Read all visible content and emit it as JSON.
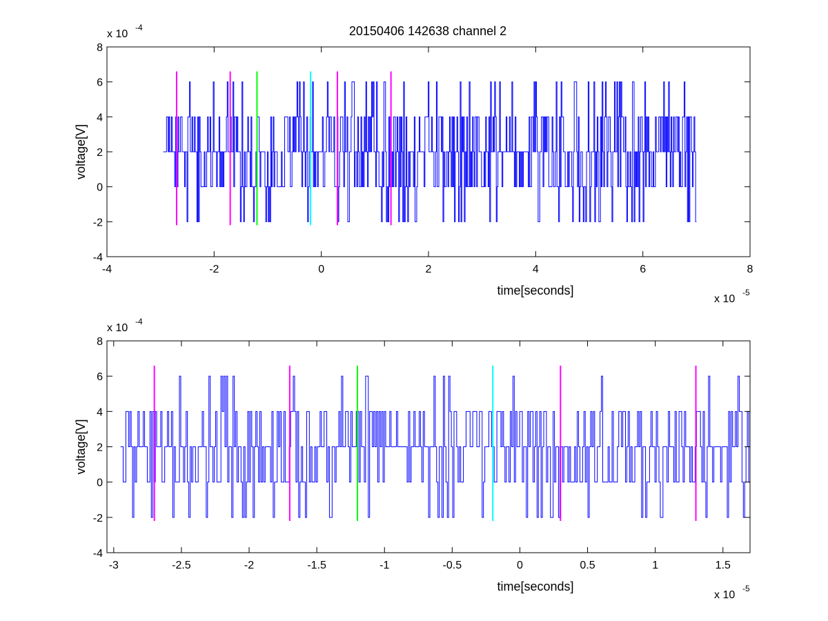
{
  "figure": {
    "title": "20150406 142638 channel 2"
  },
  "colors": {
    "signal": "#0000ff",
    "magenta": "#ff00ff",
    "green": "#00ff00",
    "cyan": "#00ffff",
    "axes": "#000000"
  },
  "chart_data": [
    {
      "type": "line",
      "xlabel": "time[seconds]",
      "ylabel": "voltage[V]",
      "x_multiplier": {
        "base": "x 10",
        "exponent": "-5"
      },
      "y_multiplier": {
        "base": "x 10",
        "exponent": "-4"
      },
      "xlim": [
        -4,
        8
      ],
      "ylim": [
        -4,
        8
      ],
      "xticks": [
        -4,
        -2,
        0,
        2,
        4,
        6,
        8
      ],
      "xtick_labels": [
        "-4",
        "-2",
        "0",
        "2",
        "4",
        "6",
        "8"
      ],
      "yticks": [
        -4,
        -2,
        0,
        2,
        4,
        6,
        8
      ],
      "ytick_labels": [
        "-4",
        "-2",
        "0",
        "2",
        "4",
        "6",
        "8"
      ],
      "grid": false,
      "series": [
        {
          "type": "step-noise",
          "x_start": -2.95,
          "x_end": 7.0,
          "levels": [
            -2,
            0,
            2,
            4,
            6
          ],
          "baseline": 2,
          "seed": 11,
          "samples": 650
        }
      ],
      "markers": [
        {
          "x": -2.7,
          "ymin": -2.2,
          "ymax": 6.6,
          "color": "magenta"
        },
        {
          "x": -1.7,
          "ymin": -2.2,
          "ymax": 6.6,
          "color": "magenta"
        },
        {
          "x": -1.2,
          "ymin": -2.2,
          "ymax": 6.6,
          "color": "green"
        },
        {
          "x": -0.2,
          "ymin": -2.2,
          "ymax": 6.6,
          "color": "cyan"
        },
        {
          "x": 0.3,
          "ymin": -2.2,
          "ymax": 6.6,
          "color": "magenta"
        },
        {
          "x": 1.3,
          "ymin": -2.2,
          "ymax": 6.6,
          "color": "magenta"
        }
      ]
    },
    {
      "type": "line",
      "xlabel": "time[seconds]",
      "ylabel": "voltage[V]",
      "x_multiplier": {
        "base": "x 10",
        "exponent": "-5"
      },
      "y_multiplier": {
        "base": "x 10",
        "exponent": "-4"
      },
      "xlim": [
        -3.05,
        1.7
      ],
      "ylim": [
        -4,
        8
      ],
      "xticks": [
        -3,
        -2.5,
        -2,
        -1.5,
        -1,
        -0.5,
        0,
        0.5,
        1,
        1.5
      ],
      "xtick_labels": [
        "-3",
        "-2.5",
        "-2",
        "-1.5",
        "-1",
        "-0.5",
        "0",
        "0.5",
        "1",
        "1.5"
      ],
      "yticks": [
        -4,
        -2,
        0,
        2,
        4,
        6,
        8
      ],
      "ytick_labels": [
        "-4",
        "-2",
        "0",
        "2",
        "4",
        "6",
        "8"
      ],
      "grid": false,
      "series": [
        {
          "type": "step-noise",
          "x_start": -2.95,
          "x_end": 1.7,
          "levels": [
            -2,
            0,
            2,
            4,
            6
          ],
          "baseline": 2,
          "seed": 23,
          "samples": 470
        }
      ],
      "markers": [
        {
          "x": -2.7,
          "ymin": -2.2,
          "ymax": 6.6,
          "color": "magenta"
        },
        {
          "x": -1.7,
          "ymin": -2.2,
          "ymax": 6.6,
          "color": "magenta"
        },
        {
          "x": -1.2,
          "ymin": -2.2,
          "ymax": 6.6,
          "color": "green"
        },
        {
          "x": -0.2,
          "ymin": -2.2,
          "ymax": 6.6,
          "color": "cyan"
        },
        {
          "x": 0.3,
          "ymin": -2.2,
          "ymax": 6.6,
          "color": "magenta"
        },
        {
          "x": 1.3,
          "ymin": -2.2,
          "ymax": 6.6,
          "color": "magenta"
        }
      ]
    }
  ]
}
